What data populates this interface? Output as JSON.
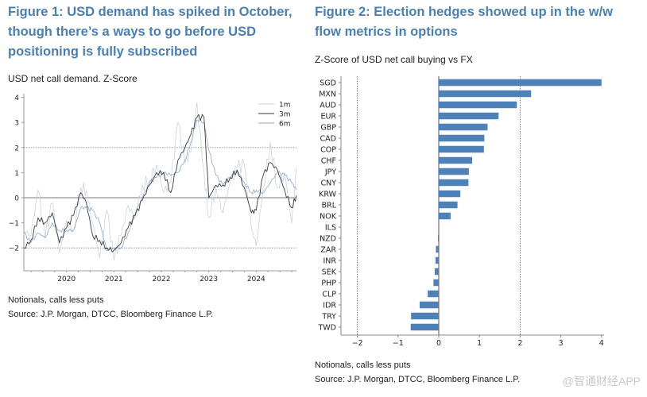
{
  "figure1": {
    "title_lines": [
      "Figure 1: USD demand has spiked in October,",
      "though there’s a ways to go before USD",
      "positioning is fully subscribed"
    ],
    "subtitle": "USD net call demand. Z-Score",
    "notes": "Notionals, calls less puts",
    "source": "Source: J.P. Morgan, DTCC, Bloomberg Finance L.P."
  },
  "figure2": {
    "title_lines": [
      "Figure 2: Election hedges showed up in the w/w",
      "flow metrics in options"
    ],
    "subtitle": "Z-Score of USD net call buying vs FX",
    "notes": "Notionals, calls less puts",
    "source": "Source: J.P. Morgan, DTCC, Bloomberg Finance L.P."
  },
  "watermark": "@智通财经APP",
  "chart_data": [
    {
      "type": "line",
      "title": "USD net call demand. Z-Score",
      "xlabel": "",
      "ylabel": "",
      "xlim": [
        2019.1,
        2024.85
      ],
      "ylim": [
        -2.9,
        4.1
      ],
      "xticks": [
        2020,
        2021,
        2022,
        2023,
        2024
      ],
      "xtick_labels": [
        "2020",
        "2021",
        "2022",
        "2023",
        "2024"
      ],
      "yticks": [
        -2,
        -1,
        0,
        1,
        2,
        3,
        4
      ],
      "ytick_labels": [
        "−2",
        "−1",
        "0",
        "1",
        "2",
        "3",
        "4"
      ],
      "reference_lines": [
        {
          "y": 2,
          "style": "dotted"
        },
        {
          "y": 0,
          "style": "solid"
        },
        {
          "y": -2,
          "style": "dotted"
        }
      ],
      "legend": {
        "placement": "top-right",
        "entries": [
          "1m",
          "3m",
          "6m"
        ]
      },
      "x": [
        2019.1,
        2019.25,
        2019.4,
        2019.55,
        2019.7,
        2019.85,
        2020.0,
        2020.15,
        2020.3,
        2020.42,
        2020.55,
        2020.7,
        2020.85,
        2021.0,
        2021.15,
        2021.3,
        2021.45,
        2021.6,
        2021.75,
        2021.9,
        2022.05,
        2022.2,
        2022.35,
        2022.5,
        2022.62,
        2022.75,
        2022.9,
        2023.0,
        2023.15,
        2023.3,
        2023.45,
        2023.6,
        2023.75,
        2023.9,
        2024.0,
        2024.15,
        2024.3,
        2024.45,
        2024.6,
        2024.75,
        2024.85
      ],
      "series": [
        {
          "name": "1m",
          "color": "#c9d3de",
          "values": [
            -1.3,
            -1.5,
            0.3,
            -1.6,
            -0.2,
            -2.2,
            -0.9,
            -1.3,
            0.4,
            0.3,
            -1.0,
            -2.4,
            -0.5,
            -2.5,
            -1.5,
            -0.3,
            -0.8,
            0.5,
            0.7,
            1.3,
            0.2,
            0.6,
            3.0,
            1.4,
            1.8,
            3.8,
            1.0,
            -0.8,
            0.4,
            -0.6,
            0.6,
            1.2,
            1.3,
            -1.2,
            -1.9,
            0.4,
            2.2,
            0.4,
            1.0,
            -1.0,
            1.2
          ]
        },
        {
          "name": "3m",
          "color": "#3a3a3a",
          "values": [
            -2.0,
            -1.7,
            -0.8,
            -1.0,
            -0.6,
            -1.8,
            -1.2,
            -0.7,
            0.2,
            -0.2,
            -1.5,
            -1.7,
            -2.0,
            -2.1,
            -1.8,
            -1.2,
            -0.7,
            -0.1,
            0.5,
            1.0,
            1.0,
            0.2,
            1.5,
            2.0,
            2.5,
            3.2,
            3.2,
            0.0,
            0.5,
            0.5,
            0.8,
            1.1,
            0.4,
            -0.6,
            -0.5,
            0.9,
            1.4,
            1.1,
            0.3,
            -0.4,
            0.1
          ]
        },
        {
          "name": "6m",
          "color": "#8ba8c8",
          "values": [
            -1.4,
            -1.8,
            -1.4,
            -1.6,
            -1.0,
            -1.3,
            -1.3,
            -1.3,
            -0.4,
            -0.4,
            -0.5,
            -1.0,
            -2.1,
            -2.0,
            -2.0,
            -1.4,
            -0.6,
            0.0,
            0.6,
            0.8,
            1.0,
            0.9,
            1.0,
            1.5,
            2.2,
            3.1,
            3.0,
            1.9,
            0.9,
            0.5,
            0.8,
            1.1,
            0.6,
            0.2,
            0.3,
            0.2,
            0.6,
            1.0,
            0.9,
            0.6,
            0.3
          ]
        }
      ]
    },
    {
      "type": "bar",
      "orientation": "horizontal",
      "title": "Z-Score of USD net call buying vs FX",
      "xlabel": "",
      "ylabel": "",
      "xlim": [
        -2.5,
        4.0
      ],
      "xticks": [
        -2,
        -1,
        0,
        1,
        2,
        3,
        4
      ],
      "xtick_labels": [
        "−2",
        "−1",
        "0",
        "1",
        "2",
        "3",
        "4"
      ],
      "reference_lines": [
        {
          "x": -2,
          "style": "dotted"
        },
        {
          "x": 2,
          "style": "dotted"
        },
        {
          "x": 0,
          "style": "solid"
        }
      ],
      "bar_color": "#4f81b9",
      "categories": [
        "SGD",
        "MXN",
        "AUD",
        "EUR",
        "GBP",
        "CAD",
        "COP",
        "CHF",
        "JPY",
        "CNY",
        "KRW",
        "BRL",
        "NOK",
        "ILS",
        "NZD",
        "ZAR",
        "INR",
        "SEK",
        "PHP",
        "CLP",
        "IDR",
        "TRY",
        "TWD"
      ],
      "values": [
        4.0,
        2.27,
        1.92,
        1.47,
        1.2,
        1.12,
        1.11,
        0.82,
        0.74,
        0.73,
        0.53,
        0.46,
        0.29,
        0.0,
        -0.02,
        -0.07,
        -0.08,
        -0.1,
        -0.13,
        -0.27,
        -0.47,
        -0.68,
        -0.69
      ]
    }
  ]
}
